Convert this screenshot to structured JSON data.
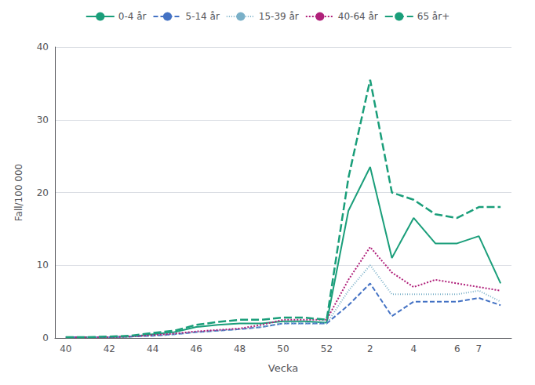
{
  "chart_data": {
    "type": "line",
    "xlabel": "Vecka",
    "ylabel": "Fall/100 000",
    "categories": [
      "40",
      null,
      "42",
      null,
      "44",
      null,
      "46",
      null,
      "48",
      null,
      "50",
      null,
      "52",
      null,
      "2",
      null,
      "4",
      null,
      "6",
      "7",
      null
    ],
    "ylim": [
      0,
      40
    ],
    "yticks": [
      0,
      10,
      20,
      30,
      40
    ],
    "grid": true,
    "legend": "top",
    "series": [
      {
        "name": "0-4 år",
        "color": "#1a9e7a",
        "line_style": "solid",
        "values": [
          0.1,
          0.1,
          0.1,
          0.2,
          0.5,
          0.8,
          1.5,
          1.8,
          2.0,
          2.0,
          2.3,
          2.3,
          2.1,
          17.5,
          23.5,
          11.0,
          16.5,
          13.0,
          13.0,
          14.0,
          7.5
        ]
      },
      {
        "name": "5-14 år",
        "color": "#4472c4",
        "line_style": "dashed",
        "values": [
          0.1,
          0.1,
          0.1,
          0.2,
          0.3,
          0.5,
          0.8,
          1.0,
          1.2,
          1.5,
          2.0,
          2.0,
          2.0,
          4.5,
          7.5,
          3.0,
          5.0,
          5.0,
          5.0,
          5.5,
          4.5
        ]
      },
      {
        "name": "15-39 år",
        "color": "#7ab0c8",
        "line_style": "dotted",
        "values": [
          0.1,
          0.1,
          0.1,
          0.2,
          0.3,
          0.5,
          0.8,
          1.0,
          1.2,
          1.5,
          2.0,
          2.0,
          2.0,
          6.5,
          10.0,
          6.0,
          6.0,
          6.0,
          6.0,
          6.5,
          5.0
        ]
      },
      {
        "name": "40-64 år",
        "color": "#b0207a",
        "line_style": "short-dashed",
        "values": [
          0.1,
          0.1,
          0.1,
          0.2,
          0.4,
          0.6,
          0.9,
          1.1,
          1.3,
          1.8,
          2.5,
          2.5,
          2.5,
          8.0,
          12.5,
          9.0,
          7.0,
          8.0,
          7.5,
          7.0,
          6.5
        ]
      },
      {
        "name": "65 år+",
        "color": "#1a9e7a",
        "line_style": "long-dashed",
        "values": [
          0.1,
          0.1,
          0.2,
          0.3,
          0.7,
          1.0,
          1.8,
          2.2,
          2.5,
          2.5,
          2.8,
          2.8,
          2.5,
          22.0,
          35.5,
          20.0,
          19.0,
          17.0,
          16.5,
          18.0,
          18.0
        ]
      }
    ]
  }
}
